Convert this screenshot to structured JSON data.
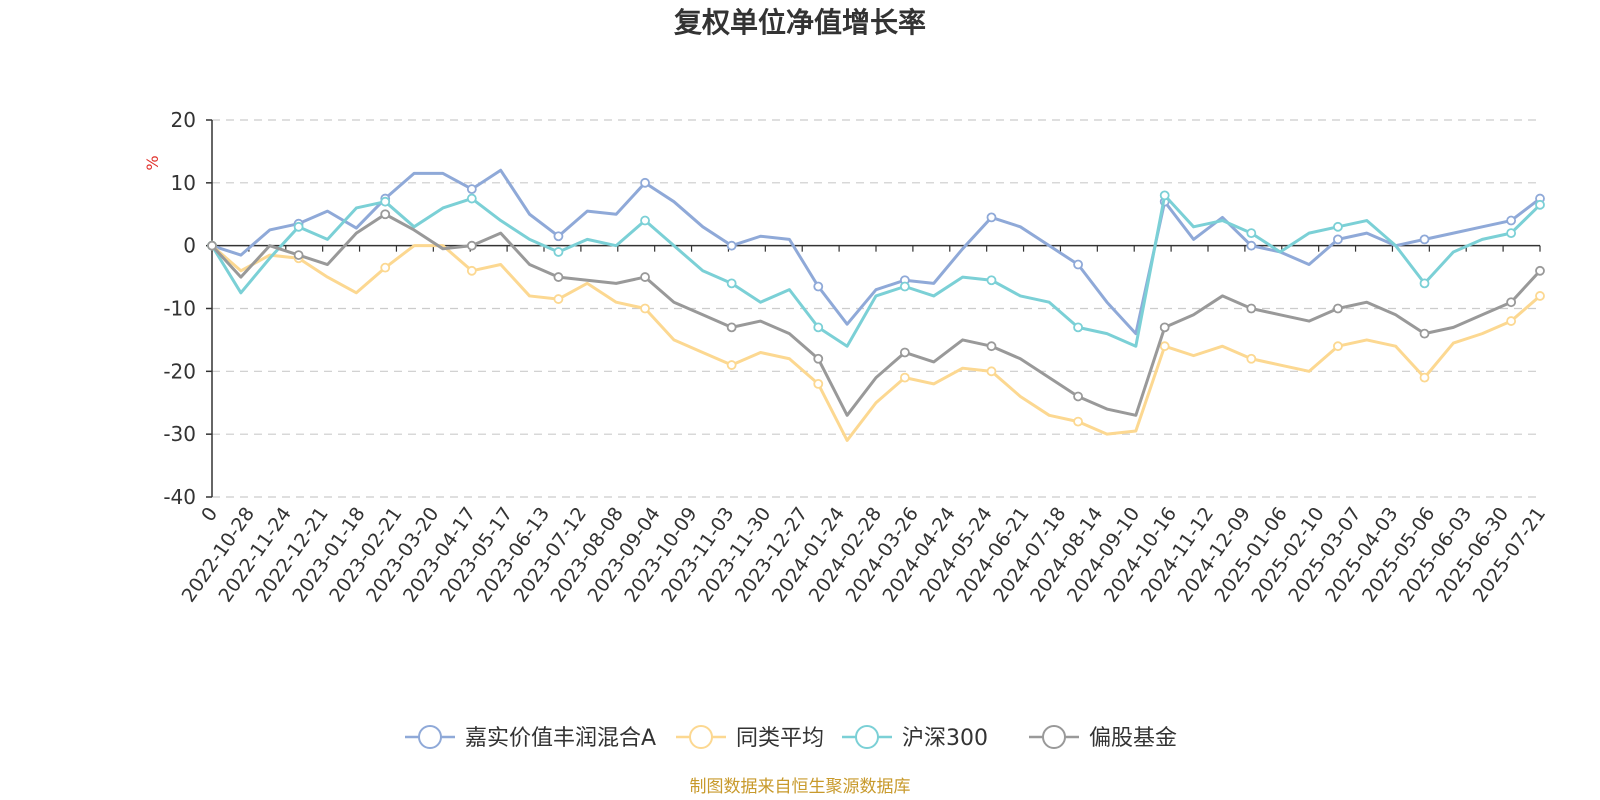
{
  "chart_data": {
    "type": "line",
    "title": "复权单位净值增长率",
    "ylabel": "%",
    "ylim": [
      -40,
      20
    ],
    "yticks": [
      20,
      10,
      0,
      -10,
      -20,
      -30,
      -40
    ],
    "x_ticks": [
      "0",
      "2022-10-28",
      "2022-11-24",
      "2022-12-21",
      "2023-01-18",
      "2023-02-21",
      "2023-03-20",
      "2023-04-17",
      "2023-05-17",
      "2023-06-13",
      "2023-07-12",
      "2023-08-08",
      "2023-09-04",
      "2023-10-09",
      "2023-11-03",
      "2023-11-30",
      "2023-12-27",
      "2024-01-24",
      "2024-02-28",
      "2024-03-26",
      "2024-04-24",
      "2024-05-24",
      "2024-06-21",
      "2024-07-18",
      "2024-08-14",
      "2024-09-10",
      "2024-10-16",
      "2024-11-12",
      "2024-12-09",
      "2025-01-06",
      "2025-02-10",
      "2025-03-07",
      "2025-04-03",
      "2025-05-06",
      "2025-06-03",
      "2025-06-30",
      "2025-07-21"
    ],
    "grid": true,
    "legend_position": "bottom",
    "series": [
      {
        "name": "嘉实价值丰润混合A",
        "color": "#8fa9d8",
        "values": [
          0,
          -1.5,
          2.5,
          3.5,
          5.5,
          2.8,
          7.5,
          11.5,
          11.5,
          9,
          12,
          5,
          1.5,
          5.5,
          5,
          10,
          7,
          3,
          0,
          1.5,
          1,
          -6.5,
          -12.5,
          -7,
          -5.5,
          -6,
          -0.5,
          4.5,
          3,
          0,
          -3,
          -9,
          -14,
          7,
          1,
          4.5,
          0,
          -1,
          -3,
          1,
          2,
          0,
          1,
          2,
          3,
          4,
          7.5
        ]
      },
      {
        "name": "同类平均",
        "color": "#fcd891",
        "values": [
          0,
          -4,
          -1.5,
          -2,
          -5,
          -7.5,
          -3.5,
          0,
          0,
          -4,
          -3,
          -8,
          -8.5,
          -6,
          -9,
          -10,
          -15,
          -17,
          -19,
          -17,
          -18,
          -22,
          -31,
          -25,
          -21,
          -22,
          -19.5,
          -20,
          -24,
          -27,
          -28,
          -30,
          -29.5,
          -16,
          -17.5,
          -16,
          -18,
          -19,
          -20,
          -16,
          -15,
          -16,
          -21,
          -15.5,
          -14,
          -12,
          -8
        ]
      },
      {
        "name": "沪深300",
        "color": "#7bd0d6",
        "values": [
          0,
          -7.5,
          -2,
          3,
          1,
          6,
          7,
          3,
          6,
          7.5,
          4,
          1,
          -1,
          1,
          0,
          4,
          0,
          -4,
          -6,
          -9,
          -7,
          -13,
          -16,
          -8,
          -6.5,
          -8,
          -5,
          -5.5,
          -8,
          -9,
          -13,
          -14,
          -16,
          8,
          3,
          4,
          2,
          -1,
          2,
          3,
          4,
          0,
          -6,
          -1,
          1,
          2,
          6.5
        ]
      },
      {
        "name": "偏股基金",
        "color": "#999999",
        "values": [
          0,
          -5,
          0,
          -1.5,
          -3,
          2,
          5,
          2.5,
          -0.5,
          0,
          2,
          -3,
          -5,
          -5.5,
          -6,
          -5,
          -9,
          -11,
          -13,
          -12,
          -14,
          -18,
          -27,
          -21,
          -17,
          -18.5,
          -15,
          -16,
          -18,
          -21,
          -24,
          -26,
          -27,
          -13,
          -11,
          -8,
          -10,
          -11,
          -12,
          -10,
          -9,
          -11,
          -14,
          -13,
          -11,
          -9,
          -4
        ]
      }
    ]
  },
  "source_note": "制图数据来自恒生聚源数据库"
}
